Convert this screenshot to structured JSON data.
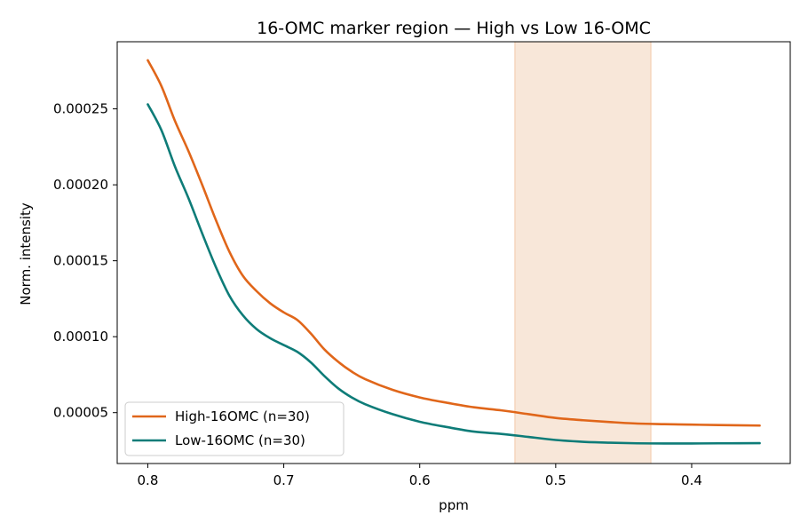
{
  "chart_data": {
    "type": "line",
    "title": "16-OMC marker region — High vs Low 16-OMC",
    "xlabel": "ppm",
    "ylabel": "Norm. intensity",
    "x_reversed": true,
    "xlim": [
      0.8225,
      0.3275
    ],
    "ylim": [
      1.65e-05,
      0.0002942
    ],
    "x_ticks": [
      0.8,
      0.7,
      0.6,
      0.5,
      0.4
    ],
    "x_tick_labels": [
      "0.8",
      "0.7",
      "0.6",
      "0.5",
      "0.4"
    ],
    "y_ticks": [
      5e-05,
      0.0001,
      0.00015,
      0.0002,
      0.00025
    ],
    "y_tick_labels": [
      "0.00005",
      "0.00010",
      "0.00015",
      "0.00020",
      "0.00025"
    ],
    "grid": false,
    "legend_position": "lower-left",
    "highlight_region": {
      "x_from": 0.53,
      "x_to": 0.43,
      "color": "#f6dfcc"
    },
    "series": [
      {
        "name": "High-16OMC (n=30)",
        "color": "#e0661a",
        "x": [
          0.8,
          0.79,
          0.78,
          0.77,
          0.76,
          0.75,
          0.74,
          0.73,
          0.72,
          0.71,
          0.7,
          0.69,
          0.68,
          0.67,
          0.66,
          0.65,
          0.64,
          0.62,
          0.6,
          0.58,
          0.56,
          0.54,
          0.52,
          0.5,
          0.48,
          0.46,
          0.44,
          0.42,
          0.4,
          0.38,
          0.35
        ],
        "y": [
          0.000282,
          0.000265,
          0.000242,
          0.000222,
          0.0002,
          0.000177,
          0.000156,
          0.00014,
          0.00013,
          0.000122,
          0.000116,
          0.000111,
          0.000102,
          9.15e-05,
          8.35e-05,
          7.7e-05,
          7.2e-05,
          6.5e-05,
          6e-05,
          5.65e-05,
          5.35e-05,
          5.15e-05,
          4.9e-05,
          4.65e-05,
          4.5e-05,
          4.38e-05,
          4.28e-05,
          4.24e-05,
          4.21e-05,
          4.18e-05,
          4.15e-05
        ]
      },
      {
        "name": "Low-16OMC (n=30)",
        "color": "#0e7c78",
        "x": [
          0.8,
          0.79,
          0.78,
          0.77,
          0.76,
          0.75,
          0.74,
          0.73,
          0.72,
          0.71,
          0.7,
          0.69,
          0.68,
          0.67,
          0.66,
          0.65,
          0.64,
          0.62,
          0.6,
          0.58,
          0.56,
          0.54,
          0.52,
          0.5,
          0.48,
          0.46,
          0.44,
          0.42,
          0.4,
          0.38,
          0.35
        ],
        "y": [
          0.000253,
          0.000236,
          0.000212,
          0.000191,
          0.000168,
          0.000146,
          0.000127,
          0.000114,
          0.000105,
          9.9e-05,
          9.45e-05,
          9e-05,
          8.3e-05,
          7.4e-05,
          6.6e-05,
          6e-05,
          5.55e-05,
          4.9e-05,
          4.4e-05,
          4.05e-05,
          3.75e-05,
          3.6e-05,
          3.4e-05,
          3.2e-05,
          3.08e-05,
          3.02e-05,
          2.98e-05,
          2.97e-05,
          2.97e-05,
          2.98e-05,
          2.99e-05
        ]
      }
    ]
  }
}
